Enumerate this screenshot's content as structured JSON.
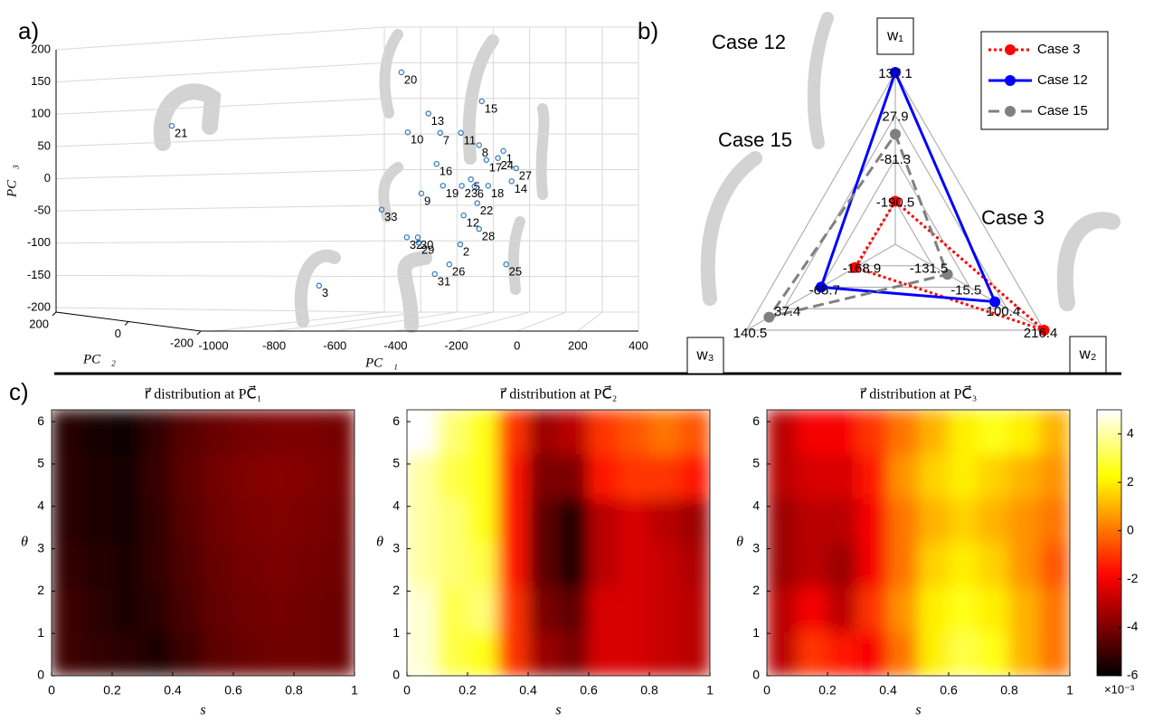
{
  "panel_labels": [
    "a)",
    "b)",
    "c)"
  ],
  "chart_data": [
    {
      "type": "scatter3d",
      "x_label": "PC⃗₁",
      "y_label": "PC⃗₂",
      "z_label": "PC⃗₃",
      "xlim": [
        -1000,
        400
      ],
      "xticks": [
        -1000,
        -800,
        -600,
        -400,
        -200,
        0,
        200,
        400
      ],
      "ylim": [
        -200,
        200
      ],
      "yticks": [
        -200,
        0,
        200
      ],
      "zlim": [
        -200,
        200
      ],
      "zticks": [
        -200,
        -150,
        -100,
        -50,
        0,
        50,
        100,
        150,
        200
      ],
      "grid": true,
      "color": "#3a7fc1",
      "points": {
        "labels": [
          "21",
          "20",
          "15",
          "13",
          "10",
          "7",
          "11",
          "8",
          "1",
          "17",
          "24",
          "16",
          "27",
          "14",
          "19",
          "23",
          "5",
          "6",
          "18",
          "9",
          "12",
          "22",
          "33",
          "28",
          "2",
          "32",
          "30",
          "29",
          "26",
          "31",
          "25",
          "3"
        ],
        "x": [
          -1137,
          -381,
          -116,
          -292,
          -360,
          -253,
          -185,
          -125,
          -45,
          -101,
          -63,
          -265,
          -3,
          -18,
          -244,
          -182,
          -152,
          -140,
          -95,
          -315,
          -176,
          -131,
          -446,
          -125,
          -187,
          -363,
          -327,
          -324,
          -223,
          -271,
          -36,
          -652
        ],
        "z": [
          82,
          165,
          120,
          101,
          72,
          71,
          71,
          52,
          43,
          29,
          32,
          23,
          16,
          -4,
          -11,
          -11,
          -1,
          -12,
          -11,
          -23,
          -57,
          -38,
          -48,
          -78,
          -102,
          -91,
          -91,
          -99,
          -133,
          -148,
          -133,
          -166
        ]
      }
    },
    {
      "type": "radar",
      "legend": "top-right",
      "axes": [
        {
          "label": "w₁",
          "lim": [
            -299.7,
            137.1
          ],
          "ticks": [
            -190.5,
            -81.3,
            27.9,
            137.1
          ]
        },
        {
          "label": "w₂",
          "lim": [
            -247.5,
            216.4
          ],
          "ticks": [
            -131.5,
            -15.5,
            100.4,
            216.4
          ]
        },
        {
          "label": "w₃",
          "lim": [
            -271.6,
            140.5
          ],
          "ticks": [
            -168.9,
            -65.7,
            37.4,
            140.5
          ]
        }
      ],
      "series": [
        {
          "name": "Case 3",
          "color": "#ff0000",
          "dash": "dotted",
          "values": [
            -190.5,
            216.4,
            -160
          ]
        },
        {
          "name": "Case 12",
          "color": "#0000ff",
          "dash": "solid",
          "values": [
            137.1,
            63,
            -66
          ]
        },
        {
          "name": "Case 15",
          "color": "#808080",
          "dash": "dashed",
          "values": [
            -20,
            -85,
            78
          ]
        }
      ],
      "annotations": [
        "Case 12",
        "Case 15",
        "Case 3"
      ]
    },
    {
      "type": "heatmap",
      "title": "r⃗ distribution at PC⃗₁",
      "x_label": "s",
      "y_label": "θ",
      "xlim": [
        0,
        1
      ],
      "xticks": [
        0,
        0.2,
        0.4,
        0.6,
        0.8,
        1
      ],
      "ylim": [
        0,
        6.28
      ],
      "yticks": [
        0,
        1,
        2,
        3,
        4,
        5,
        6
      ],
      "colormap": "hot",
      "clim": [
        -6,
        5
      ],
      "z": [
        [
          -5,
          -5.2,
          -5.3,
          -5.5,
          -5,
          -4.5,
          -4.3,
          -4.2,
          -4.2,
          -4.3
        ],
        [
          -5,
          -5.3,
          -5.5,
          -5.3,
          -4.8,
          -4.4,
          -4.2,
          -4.1,
          -4.2,
          -4.3
        ],
        [
          -5.2,
          -5.4,
          -5.5,
          -5.2,
          -4.7,
          -4.3,
          -4.1,
          -4,
          -4.1,
          -4.2
        ],
        [
          -5.3,
          -5.5,
          -5.6,
          -5.2,
          -4.6,
          -4.2,
          -4,
          -3.9,
          -4,
          -4.1
        ],
        [
          -5.3,
          -5.5,
          -5.7,
          -5.1,
          -4.5,
          -4.1,
          -3.9,
          -3.8,
          -3.9,
          -4
        ],
        [
          -5.4,
          -5.6,
          -5.8,
          -5.2,
          -4.6,
          -4.3,
          -4.1,
          -4,
          -4,
          -4.1
        ]
      ]
    },
    {
      "type": "heatmap",
      "title": "r⃗ distribution at PC⃗₂",
      "x_label": "s",
      "y_label": "θ",
      "xlim": [
        0,
        1
      ],
      "xticks": [
        0,
        0.2,
        0.4,
        0.6,
        0.8,
        1
      ],
      "ylim": [
        0,
        6.28
      ],
      "yticks": [
        0,
        1,
        2,
        3,
        4,
        5,
        6
      ],
      "colormap": "hot",
      "clim": [
        -6,
        5
      ],
      "z": [
        [
          4.5,
          3,
          2.5,
          -1,
          -3.5,
          -4,
          -2.5,
          -2.5,
          -2.8,
          -3
        ],
        [
          4.5,
          3,
          3.5,
          -1,
          -4,
          -4.5,
          -2.5,
          -2.5,
          -2.8,
          -3
        ],
        [
          4,
          3.5,
          3,
          -1.5,
          -4.5,
          -5.5,
          -3,
          -2.5,
          -2.8,
          -3.2
        ],
        [
          4,
          3.5,
          2.5,
          -1.5,
          -4.5,
          -5.5,
          -3,
          -2.5,
          -3,
          -3.5
        ],
        [
          4,
          3,
          2.5,
          -1.5,
          -4,
          -4,
          -1.5,
          -1,
          -1,
          -1.5
        ],
        [
          5,
          3.5,
          2.5,
          -1,
          -3.5,
          -3,
          -1,
          -0.5,
          0,
          -0.5
        ]
      ]
    },
    {
      "type": "heatmap",
      "title": "r⃗ distribution at PC⃗₃",
      "x_label": "s",
      "y_label": "θ",
      "xlim": [
        0,
        1
      ],
      "xticks": [
        0,
        0.2,
        0.4,
        0.6,
        0.8,
        1
      ],
      "ylim": [
        0,
        6.28
      ],
      "yticks": [
        0,
        1,
        2,
        3,
        4,
        5,
        6
      ],
      "colormap": "hot",
      "clim": [
        -6,
        5
      ],
      "colorbar": {
        "ticks": [
          -6,
          -4,
          -2,
          0,
          2,
          4
        ],
        "exponent_label": "×10⁻³"
      },
      "z": [
        [
          -3,
          -1,
          -1.5,
          -2,
          0,
          2,
          3,
          2.5,
          1,
          0
        ],
        [
          -3,
          -2,
          -3,
          -1,
          0.5,
          2,
          2.5,
          2,
          1,
          0
        ],
        [
          -3.5,
          -3,
          -3.5,
          -2,
          0,
          1.5,
          2,
          1.5,
          0.5,
          -0.5
        ],
        [
          -3.5,
          -3,
          -3,
          -2,
          0,
          1,
          1.5,
          1,
          0.5,
          0
        ],
        [
          -3,
          -2.5,
          -2.5,
          -1.5,
          0.5,
          1.5,
          2,
          1.5,
          1,
          0.5
        ],
        [
          -3,
          -2,
          -2,
          -1,
          0,
          1,
          2,
          2.5,
          2,
          1
        ]
      ]
    }
  ]
}
